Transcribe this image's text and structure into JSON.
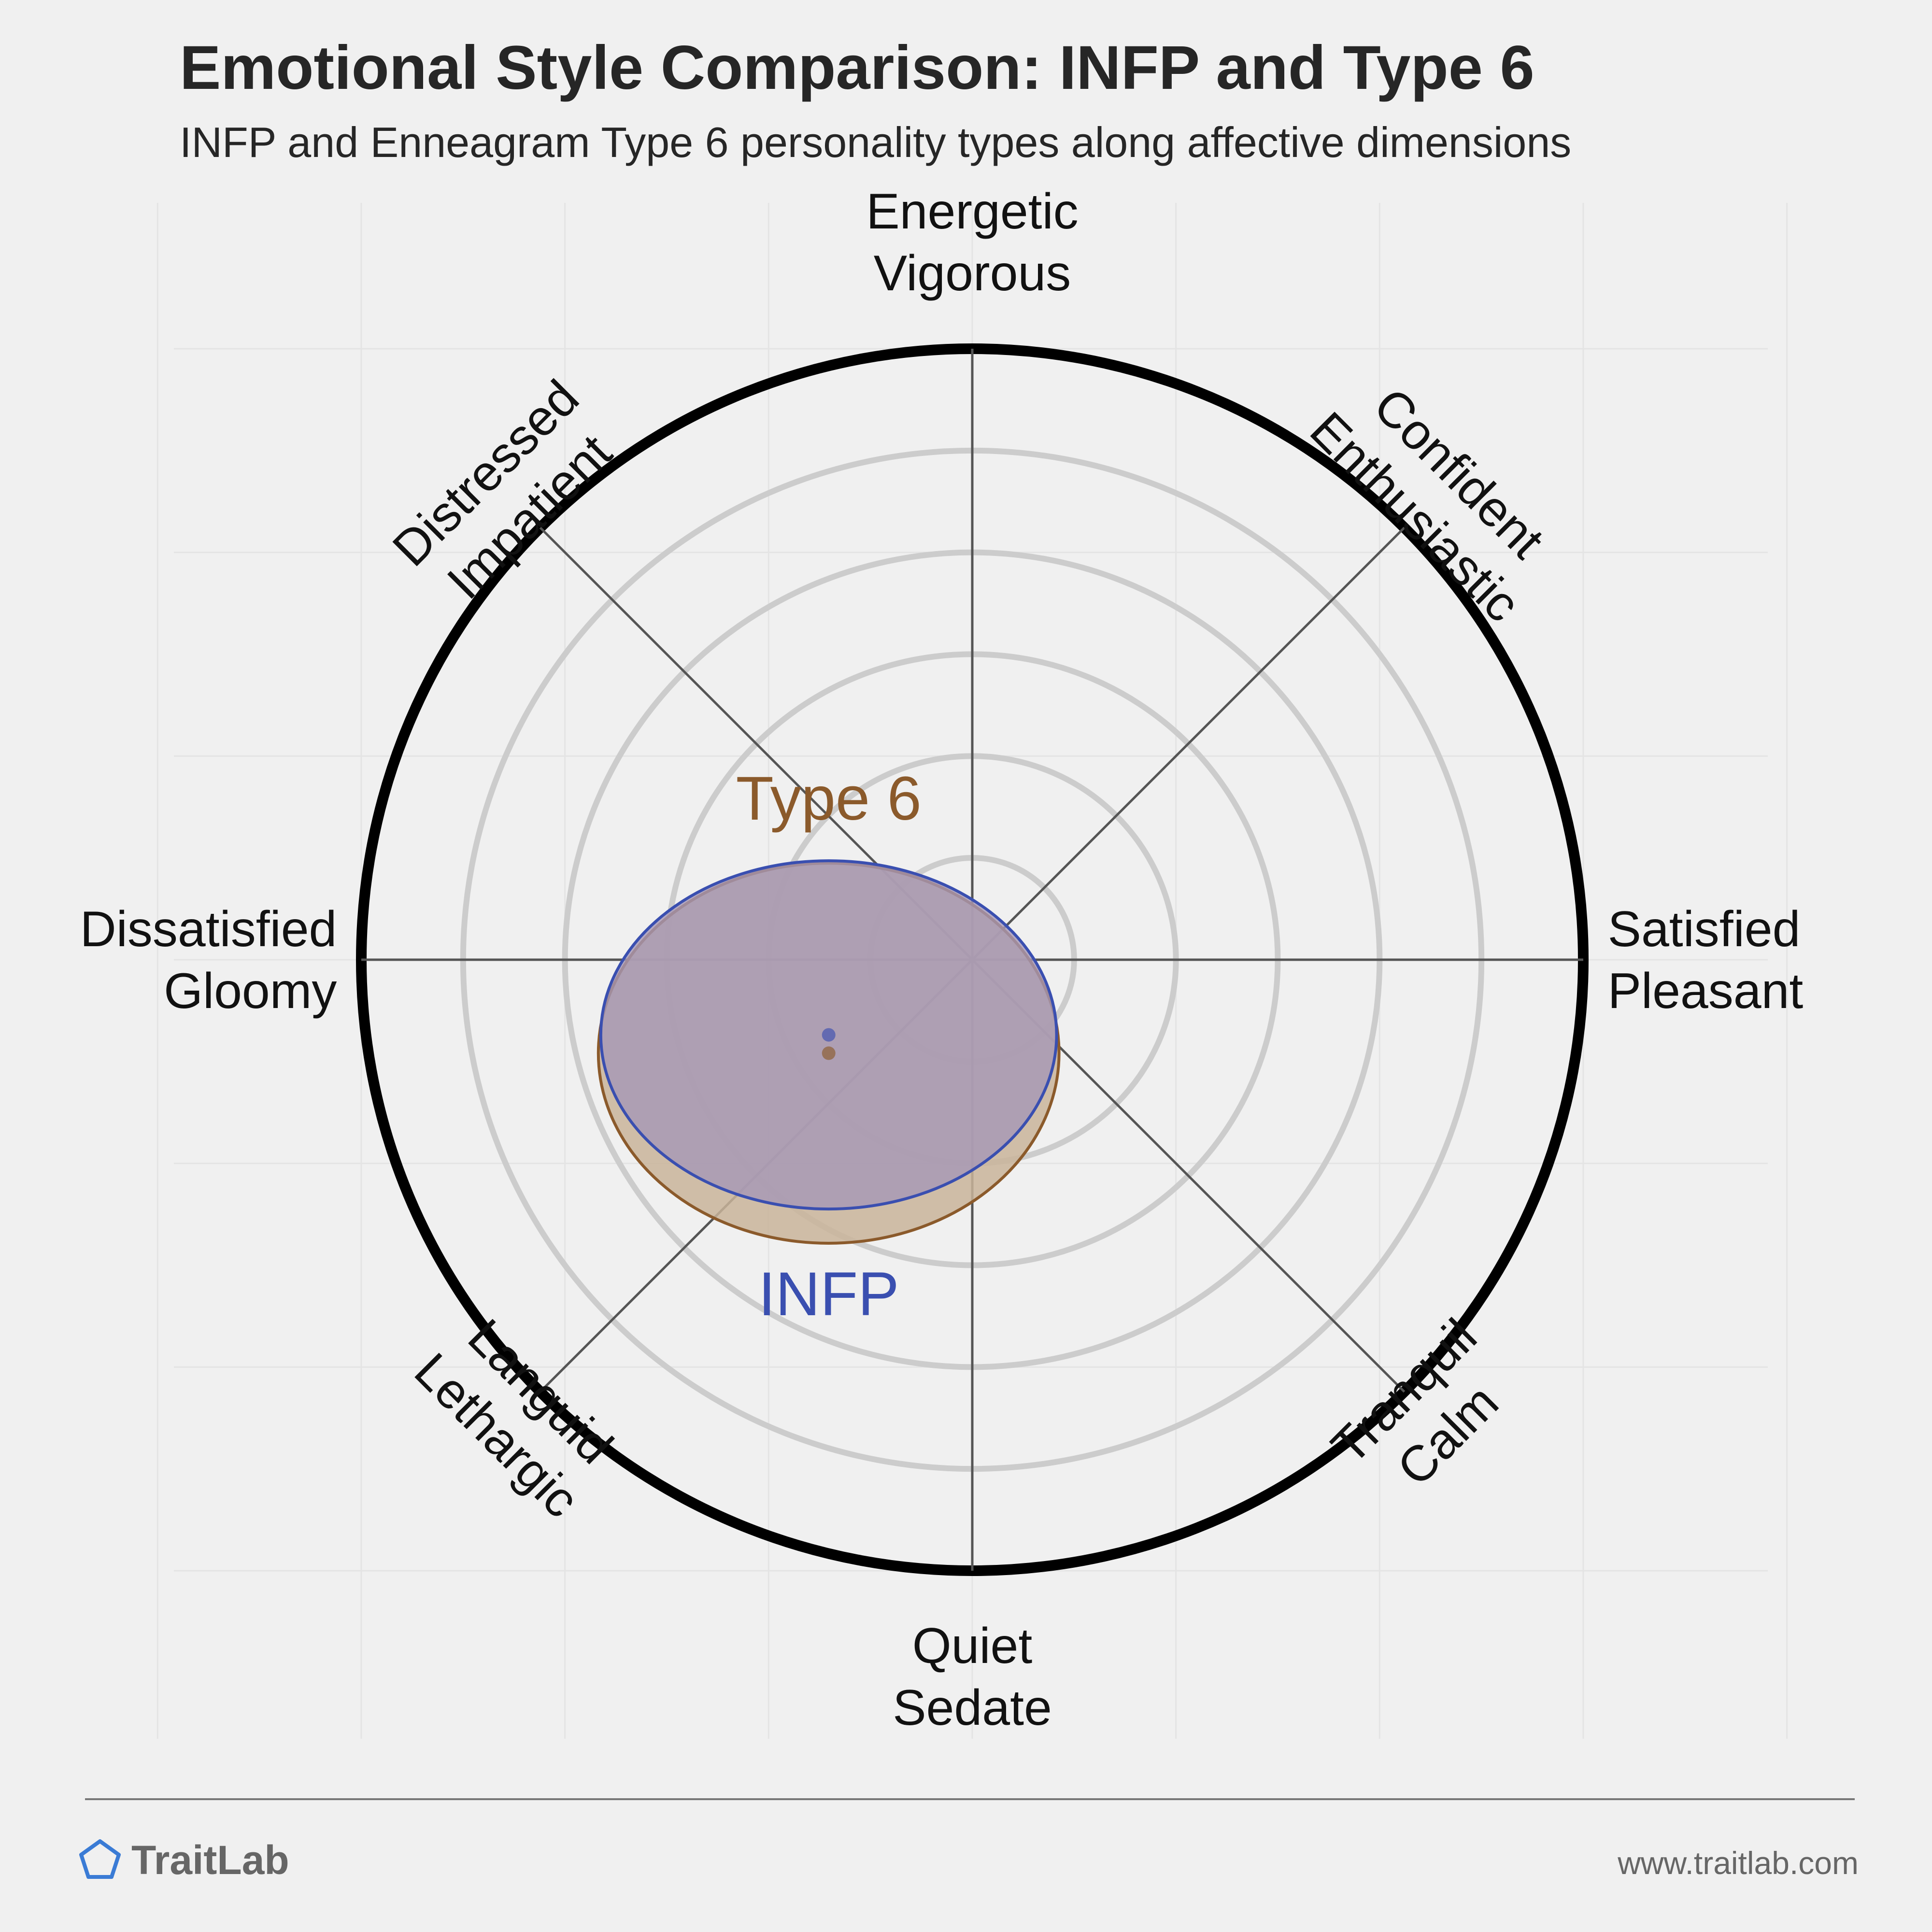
{
  "chart_data": {
    "type": "scatter",
    "title": "Emotional Style Comparison: INFP and Type 6",
    "subtitle": "INFP and Enneagram Type 6 personality types along affective dimensions",
    "axes": [
      {
        "angle": 90,
        "lines": [
          "Energetic",
          "Vigorous"
        ]
      },
      {
        "angle": 45,
        "lines": [
          "Confident",
          "Enthusiastic"
        ]
      },
      {
        "angle": 0,
        "lines": [
          "Satisfied",
          "Pleasant"
        ]
      },
      {
        "angle": -45,
        "lines": [
          "Tranquil",
          "Calm"
        ]
      },
      {
        "angle": -90,
        "lines": [
          "Quiet",
          "Sedate"
        ]
      },
      {
        "angle": -135,
        "lines": [
          "Languid",
          "Lethargic"
        ]
      },
      {
        "angle": 180,
        "lines": [
          "Dissatisfied",
          "Gloomy"
        ]
      },
      {
        "angle": 135,
        "lines": [
          "Distressed",
          "Impatient"
        ]
      }
    ],
    "xlim": [
      -1,
      1
    ],
    "ylim": [
      -1,
      1
    ],
    "ring_count": 6,
    "series": [
      {
        "name": "Type 6",
        "x": -0.235,
        "y": -0.153,
        "spread_x": 0.377,
        "spread_y": 0.311,
        "color": "#8B5A2B",
        "fill": "#c9b49a",
        "label_position": "above"
      },
      {
        "name": "INFP",
        "x": -0.235,
        "y": -0.123,
        "spread_x": 0.373,
        "spread_y": 0.285,
        "color": "#3a4fb0",
        "fill": "#a597b7",
        "label_position": "below"
      }
    ]
  },
  "footer": {
    "brand": "TraitLab",
    "url": "www.traitlab.com"
  },
  "colors": {
    "background": "#f0f0f0",
    "ring": "#cccccc",
    "outer_ring": "#000000",
    "axis_line": "#555555",
    "brand_icon": "#3a7bd5",
    "footer_text": "#666666"
  }
}
